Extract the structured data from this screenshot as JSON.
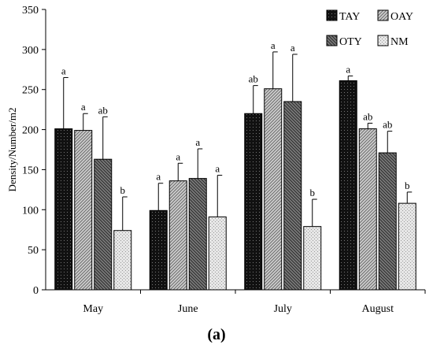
{
  "chart_data": {
    "type": "bar",
    "categories": [
      "May",
      "June",
      "July",
      "August"
    ],
    "ylabel": "Density/Number/m2",
    "xlabel": "",
    "ylim": [
      0,
      350
    ],
    "yticks": [
      0,
      50,
      100,
      150,
      200,
      250,
      300,
      350
    ],
    "legend_position": "top-right",
    "grid": false,
    "series": [
      {
        "name": "TAY",
        "values": [
          201,
          99,
          220,
          261
        ],
        "errors": [
          64,
          34,
          35,
          6
        ],
        "letters": [
          "a",
          "a",
          "ab",
          "a"
        ],
        "pattern": "black",
        "color": "#111111"
      },
      {
        "name": "OAY",
        "values": [
          199,
          136,
          251,
          201
        ],
        "errors": [
          21,
          22,
          46,
          7
        ],
        "letters": [
          "a",
          "a",
          "a",
          "ab"
        ],
        "pattern": "diagonal",
        "color": "#b5b5b5"
      },
      {
        "name": "OTY",
        "values": [
          163,
          139,
          235,
          171
        ],
        "errors": [
          53,
          37,
          59,
          27
        ],
        "letters": [
          "ab",
          "a",
          "a",
          "ab"
        ],
        "pattern": "dark-diagonal",
        "color": "#6a6a6a"
      },
      {
        "name": "NM",
        "values": [
          74,
          91,
          79,
          108
        ],
        "errors": [
          42,
          52,
          34,
          14
        ],
        "letters": [
          "b",
          "a",
          "b",
          "b"
        ],
        "pattern": "light-dots",
        "color": "#dedede"
      }
    ],
    "panel_label": "(a)"
  }
}
